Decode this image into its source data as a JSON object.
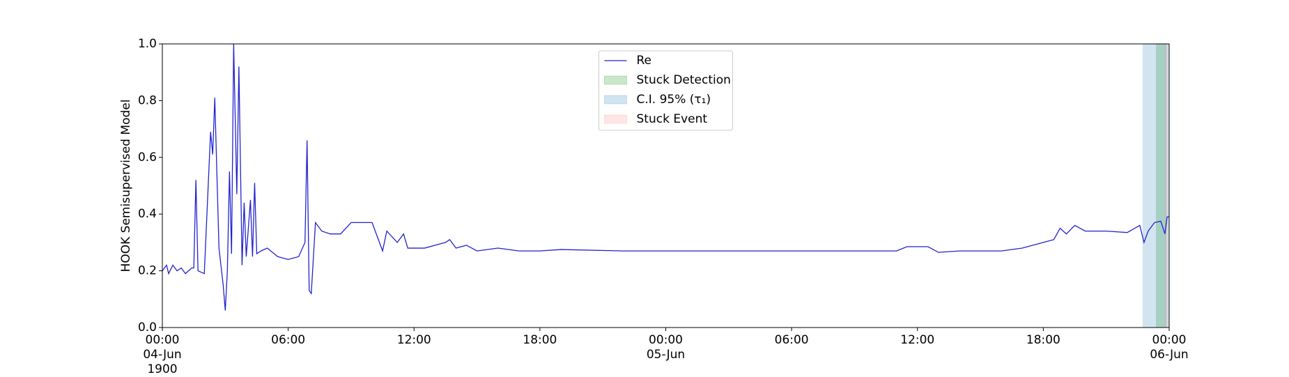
{
  "chart_data": {
    "type": "line",
    "y_label": "HOOK Semisupervised Model",
    "legend": "upper center",
    "xlim": [
      0,
      48
    ],
    "ylim": [
      0,
      1
    ],
    "xticks": [
      {
        "value": 0,
        "label": "00:00\n04-Jun\n1900"
      },
      {
        "value": 6,
        "label": "06:00"
      },
      {
        "value": 12,
        "label": "12:00"
      },
      {
        "value": 18,
        "label": "18:00"
      },
      {
        "value": 24,
        "label": "00:00\n05-Jun"
      },
      {
        "value": 30,
        "label": "06:00"
      },
      {
        "value": 36,
        "label": "12:00"
      },
      {
        "value": 42,
        "label": "18:00"
      },
      {
        "value": 48,
        "label": "00:00\n06-Jun"
      }
    ],
    "yticks": [
      {
        "value": 0,
        "label": "0.0"
      },
      {
        "value": 0.2,
        "label": "0.2"
      },
      {
        "value": 0.4,
        "label": "0.4"
      },
      {
        "value": 0.6,
        "label": "0.6"
      },
      {
        "value": 0.8,
        "label": "0.8"
      },
      {
        "value": 1,
        "label": "1.0"
      }
    ],
    "x": [
      0,
      0.2,
      0.3,
      0.5,
      0.7,
      0.9,
      1.1,
      1.4,
      1.5,
      1.6,
      1.7,
      2.0,
      2.3,
      2.4,
      2.5,
      2.7,
      2.9,
      3.0,
      3.1,
      3.2,
      3.3,
      3.4,
      3.55,
      3.65,
      3.8,
      3.9,
      4.0,
      4.1,
      4.2,
      4.3,
      4.4,
      4.5,
      4.7,
      5.0,
      5.5,
      6.0,
      6.5,
      6.8,
      6.9,
      7.0,
      7.1,
      7.3,
      7.6,
      8.0,
      8.5,
      9.0,
      9.5,
      10.0,
      10.5,
      10.7,
      11.2,
      11.5,
      11.7,
      12.5,
      13.0,
      13.5,
      13.7,
      14.0,
      14.5,
      15.0,
      16.0,
      17.0,
      18.0,
      19.0,
      22.0,
      26.0,
      30.0,
      35.0,
      35.5,
      36.5,
      37.0,
      38.0,
      39.0,
      40.0,
      41.0,
      42.0,
      42.5,
      42.8,
      43.1,
      43.5,
      44.0,
      45.0,
      46.0,
      46.6,
      46.8,
      47.0,
      47.3,
      47.6,
      47.8,
      47.9,
      48.0
    ],
    "series": [
      {
        "name": "Re",
        "color": "#2222cc",
        "values": [
          0.2,
          0.22,
          0.19,
          0.22,
          0.2,
          0.21,
          0.19,
          0.21,
          0.21,
          0.52,
          0.2,
          0.19,
          0.69,
          0.61,
          0.81,
          0.28,
          0.15,
          0.06,
          0.2,
          0.55,
          0.26,
          1.0,
          0.47,
          0.92,
          0.22,
          0.44,
          0.25,
          0.35,
          0.45,
          0.25,
          0.51,
          0.26,
          0.27,
          0.28,
          0.25,
          0.24,
          0.25,
          0.3,
          0.66,
          0.13,
          0.12,
          0.37,
          0.34,
          0.33,
          0.33,
          0.37,
          0.37,
          0.37,
          0.27,
          0.34,
          0.3,
          0.33,
          0.28,
          0.28,
          0.29,
          0.3,
          0.31,
          0.28,
          0.29,
          0.27,
          0.28,
          0.27,
          0.27,
          0.275,
          0.27,
          0.27,
          0.27,
          0.27,
          0.285,
          0.285,
          0.265,
          0.27,
          0.27,
          0.27,
          0.28,
          0.3,
          0.31,
          0.35,
          0.33,
          0.36,
          0.34,
          0.34,
          0.335,
          0.36,
          0.3,
          0.34,
          0.37,
          0.375,
          0.33,
          0.39,
          0.39
        ]
      }
    ],
    "spans": [
      {
        "name": "Stuck Detection",
        "color": "#2ca02c",
        "opacity": 0.25,
        "x": [
          47.37,
          47.84
        ]
      },
      {
        "name": "C.I. 95% (τ₁)",
        "color": "#1f77b4",
        "opacity": 0.2,
        "x": [
          46.73,
          48
        ]
      },
      {
        "name": "Stuck Event",
        "color": "#ff0000",
        "opacity": 0.1,
        "x": [
          47.8,
          47.92
        ]
      }
    ]
  }
}
